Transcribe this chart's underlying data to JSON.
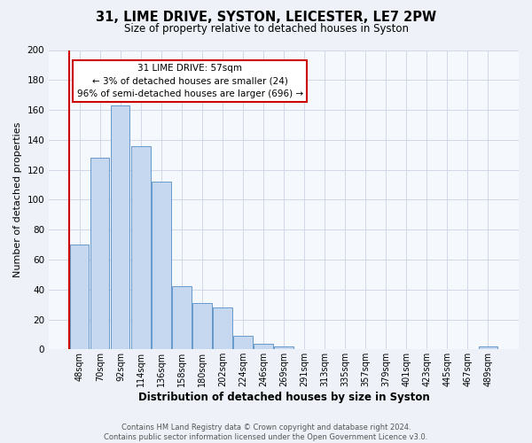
{
  "title1": "31, LIME DRIVE, SYSTON, LEICESTER, LE7 2PW",
  "title2": "Size of property relative to detached houses in Syston",
  "xlabel": "Distribution of detached houses by size in Syston",
  "ylabel": "Number of detached properties",
  "bar_labels": [
    "48sqm",
    "70sqm",
    "92sqm",
    "114sqm",
    "136sqm",
    "158sqm",
    "180sqm",
    "202sqm",
    "224sqm",
    "246sqm",
    "269sqm",
    "291sqm",
    "313sqm",
    "335sqm",
    "357sqm",
    "379sqm",
    "401sqm",
    "423sqm",
    "445sqm",
    "467sqm",
    "489sqm"
  ],
  "bar_values": [
    70,
    128,
    163,
    136,
    112,
    42,
    31,
    28,
    9,
    4,
    2,
    0,
    0,
    0,
    0,
    0,
    0,
    0,
    0,
    0,
    2
  ],
  "bar_color": "#c5d8f0",
  "bar_edge_color": "#6699cc",
  "ylim": [
    0,
    200
  ],
  "yticks": [
    0,
    20,
    40,
    60,
    80,
    100,
    120,
    140,
    160,
    180,
    200
  ],
  "marker_label_line1": "31 LIME DRIVE: 57sqm",
  "marker_label_line2": "← 3% of detached houses are smaller (24)",
  "marker_label_line3": "96% of semi-detached houses are larger (696) →",
  "annotation_box_color": "#ffffff",
  "annotation_box_edge": "#cc0000",
  "marker_line_color": "#cc0000",
  "footer_line1": "Contains HM Land Registry data © Crown copyright and database right 2024.",
  "footer_line2": "Contains public sector information licensed under the Open Government Licence v3.0.",
  "bg_color": "#eef2f8",
  "plot_bg_color": "#f5f8fd",
  "grid_color": "#d0d8e8",
  "title1_fontsize": 10.5,
  "title2_fontsize": 8.5,
  "xlabel_fontsize": 8.5,
  "ylabel_fontsize": 8,
  "tick_fontsize": 7,
  "ann_fontsize": 7.5,
  "footer_fontsize": 6
}
